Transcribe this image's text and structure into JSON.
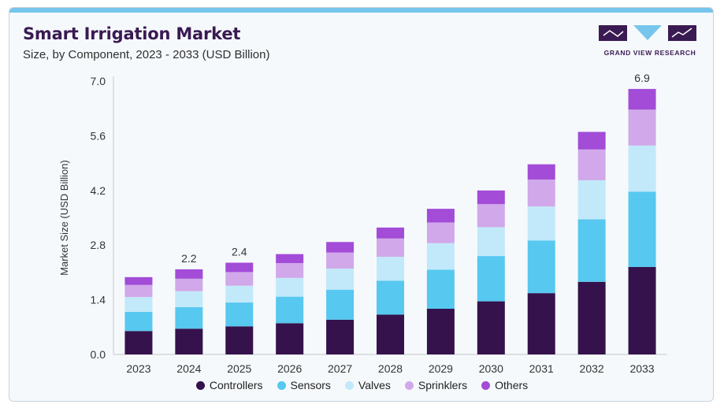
{
  "header": {
    "title": "Smart Irrigation Market",
    "subtitle": "Size, by Component, 2023 - 2033 (USD Billion)",
    "brand": "GRAND VIEW RESEARCH"
  },
  "colors": {
    "Controllers": "#35124c",
    "Sensors": "#57c8f0",
    "Valves": "#c2e9f9",
    "Sprinklers": "#d1a8ea",
    "Others": "#a24cd8",
    "accent_bar": "#76c5ec",
    "brand_dark": "#3a1a52"
  },
  "chart_data": {
    "type": "bar",
    "stacked": true,
    "title": "Smart Irrigation Market",
    "ylabel": "Market Size (USD Billion)",
    "xlabel": "",
    "ylim": [
      0,
      7.0
    ],
    "yticks": [
      "0.0",
      "1.4",
      "2.8",
      "4.2",
      "5.6",
      "7.0"
    ],
    "legend_position": "bottom",
    "grid": false,
    "categories": [
      "2023",
      "2024",
      "2025",
      "2026",
      "2027",
      "2028",
      "2029",
      "2030",
      "2031",
      "2032",
      "2033"
    ],
    "series": [
      {
        "name": "Controllers",
        "values": [
          0.6,
          0.66,
          0.72,
          0.8,
          0.89,
          1.02,
          1.17,
          1.36,
          1.57,
          1.86,
          2.24
        ]
      },
      {
        "name": "Sensors",
        "values": [
          0.49,
          0.55,
          0.61,
          0.68,
          0.77,
          0.87,
          1.0,
          1.16,
          1.35,
          1.6,
          1.93
        ]
      },
      {
        "name": "Valves",
        "values": [
          0.38,
          0.41,
          0.43,
          0.48,
          0.54,
          0.61,
          0.68,
          0.74,
          0.87,
          1.0,
          1.18
        ]
      },
      {
        "name": "Sprinklers",
        "values": [
          0.31,
          0.32,
          0.35,
          0.38,
          0.41,
          0.47,
          0.53,
          0.59,
          0.69,
          0.79,
          0.92
        ]
      },
      {
        "name": "Others",
        "values": [
          0.2,
          0.24,
          0.24,
          0.23,
          0.27,
          0.28,
          0.35,
          0.35,
          0.39,
          0.45,
          0.53
        ]
      }
    ],
    "data_labels": [
      {
        "category": "2024",
        "label": "2.2"
      },
      {
        "category": "2025",
        "label": "2.4"
      },
      {
        "category": "2033",
        "label": "6.9"
      }
    ]
  }
}
